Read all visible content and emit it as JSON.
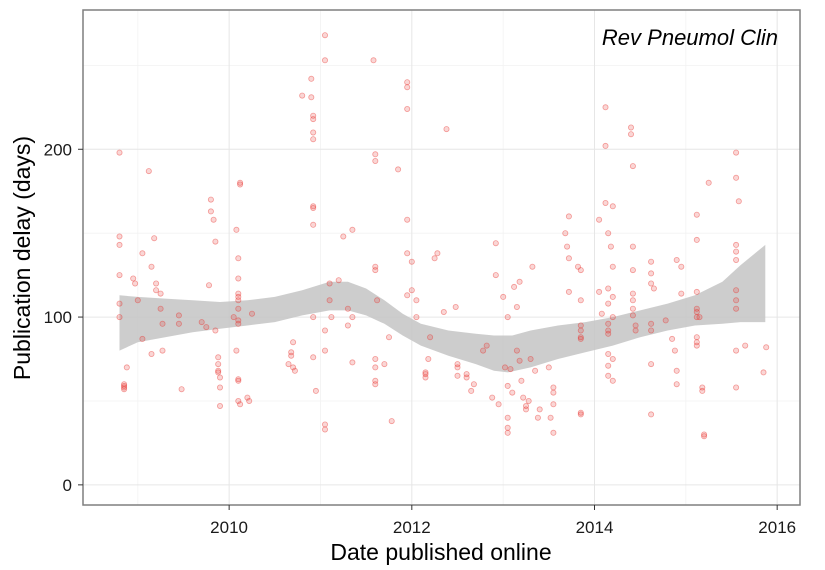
{
  "chart_data": {
    "type": "scatter",
    "annotation": "Rev Pneumol Clin",
    "xlabel": "Date published online",
    "ylabel": "Publication delay (days)",
    "xlim": [
      2008.4,
      2016.25
    ],
    "ylim": [
      -12,
      283
    ],
    "x_ticks": [
      2010,
      2012,
      2014,
      2016
    ],
    "y_ticks": [
      0,
      100,
      200
    ],
    "x_tick_labels": [
      "2010",
      "2012",
      "2014",
      "2016"
    ],
    "y_tick_labels": [
      "0",
      "100",
      "200"
    ],
    "grid": true,
    "point_color": "#e8322f",
    "band_color": "#c4c4c4",
    "points": [
      [
        2008.8,
        198
      ],
      [
        2008.8,
        148
      ],
      [
        2008.8,
        143
      ],
      [
        2008.8,
        125
      ],
      [
        2008.8,
        108
      ],
      [
        2008.8,
        100
      ],
      [
        2008.85,
        60
      ],
      [
        2008.85,
        59
      ],
      [
        2008.85,
        58
      ],
      [
        2008.85,
        57
      ],
      [
        2008.88,
        70
      ],
      [
        2008.95,
        123
      ],
      [
        2008.97,
        120
      ],
      [
        2009.0,
        110
      ],
      [
        2009.05,
        138
      ],
      [
        2009.05,
        87
      ],
      [
        2009.12,
        187
      ],
      [
        2009.15,
        130
      ],
      [
        2009.15,
        78
      ],
      [
        2009.18,
        147
      ],
      [
        2009.2,
        120
      ],
      [
        2009.2,
        116
      ],
      [
        2009.25,
        114
      ],
      [
        2009.25,
        105
      ],
      [
        2009.27,
        96
      ],
      [
        2009.27,
        80
      ],
      [
        2009.45,
        101
      ],
      [
        2009.45,
        96
      ],
      [
        2009.48,
        57
      ],
      [
        2009.7,
        97
      ],
      [
        2009.75,
        94
      ],
      [
        2009.78,
        119
      ],
      [
        2009.8,
        170
      ],
      [
        2009.8,
        163
      ],
      [
        2009.83,
        158
      ],
      [
        2009.85,
        145
      ],
      [
        2009.85,
        92
      ],
      [
        2009.88,
        76
      ],
      [
        2009.88,
        72
      ],
      [
        2009.88,
        68
      ],
      [
        2009.88,
        67
      ],
      [
        2009.9,
        64
      ],
      [
        2009.9,
        58
      ],
      [
        2009.9,
        47
      ],
      [
        2010.05,
        100
      ],
      [
        2010.08,
        80
      ],
      [
        2010.08,
        152
      ],
      [
        2010.1,
        135
      ],
      [
        2010.1,
        123
      ],
      [
        2010.1,
        114
      ],
      [
        2010.1,
        112
      ],
      [
        2010.1,
        110
      ],
      [
        2010.1,
        105
      ],
      [
        2010.1,
        98
      ],
      [
        2010.1,
        96
      ],
      [
        2010.1,
        63
      ],
      [
        2010.1,
        62
      ],
      [
        2010.1,
        50
      ],
      [
        2010.12,
        48
      ],
      [
        2010.12,
        180
      ],
      [
        2010.12,
        179
      ],
      [
        2010.2,
        52
      ],
      [
        2010.22,
        50
      ],
      [
        2010.25,
        102
      ],
      [
        2010.65,
        72
      ],
      [
        2010.68,
        79
      ],
      [
        2010.68,
        77
      ],
      [
        2010.7,
        85
      ],
      [
        2010.7,
        70
      ],
      [
        2010.72,
        68
      ],
      [
        2010.8,
        232
      ],
      [
        2010.9,
        242
      ],
      [
        2010.9,
        231
      ],
      [
        2010.92,
        220
      ],
      [
        2010.92,
        218
      ],
      [
        2010.92,
        210
      ],
      [
        2010.92,
        206
      ],
      [
        2010.92,
        166
      ],
      [
        2010.92,
        165
      ],
      [
        2010.92,
        155
      ],
      [
        2010.92,
        100
      ],
      [
        2010.92,
        76
      ],
      [
        2010.95,
        56
      ],
      [
        2011.05,
        268
      ],
      [
        2011.05,
        253
      ],
      [
        2011.05,
        92
      ],
      [
        2011.05,
        80
      ],
      [
        2011.05,
        36
      ],
      [
        2011.05,
        33
      ],
      [
        2011.1,
        120
      ],
      [
        2011.1,
        110
      ],
      [
        2011.12,
        100
      ],
      [
        2011.2,
        122
      ],
      [
        2011.25,
        148
      ],
      [
        2011.3,
        105
      ],
      [
        2011.3,
        95
      ],
      [
        2011.35,
        152
      ],
      [
        2011.35,
        100
      ],
      [
        2011.35,
        73
      ],
      [
        2011.58,
        253
      ],
      [
        2011.6,
        197
      ],
      [
        2011.6,
        193
      ],
      [
        2011.6,
        130
      ],
      [
        2011.6,
        128
      ],
      [
        2011.6,
        75
      ],
      [
        2011.6,
        70
      ],
      [
        2011.6,
        62
      ],
      [
        2011.6,
        60
      ],
      [
        2011.62,
        110
      ],
      [
        2011.7,
        72
      ],
      [
        2011.75,
        88
      ],
      [
        2011.78,
        38
      ],
      [
        2011.85,
        188
      ],
      [
        2011.95,
        240
      ],
      [
        2011.95,
        237
      ],
      [
        2011.95,
        224
      ],
      [
        2011.95,
        158
      ],
      [
        2011.95,
        138
      ],
      [
        2011.95,
        113
      ],
      [
        2012.0,
        133
      ],
      [
        2012.0,
        116
      ],
      [
        2012.05,
        110
      ],
      [
        2012.05,
        100
      ],
      [
        2012.15,
        67
      ],
      [
        2012.15,
        66
      ],
      [
        2012.15,
        64
      ],
      [
        2012.18,
        75
      ],
      [
        2012.2,
        88
      ],
      [
        2012.25,
        135
      ],
      [
        2012.28,
        138
      ],
      [
        2012.35,
        103
      ],
      [
        2012.38,
        212
      ],
      [
        2012.48,
        106
      ],
      [
        2012.5,
        72
      ],
      [
        2012.5,
        70
      ],
      [
        2012.5,
        65
      ],
      [
        2012.6,
        66
      ],
      [
        2012.6,
        64
      ],
      [
        2012.65,
        56
      ],
      [
        2012.68,
        60
      ],
      [
        2012.78,
        80
      ],
      [
        2012.82,
        83
      ],
      [
        2012.88,
        52
      ],
      [
        2012.92,
        144
      ],
      [
        2012.92,
        125
      ],
      [
        2012.95,
        48
      ],
      [
        2013.0,
        112
      ],
      [
        2013.02,
        70
      ],
      [
        2013.05,
        100
      ],
      [
        2013.05,
        40
      ],
      [
        2013.05,
        34
      ],
      [
        2013.05,
        31
      ],
      [
        2013.05,
        59
      ],
      [
        2013.08,
        69
      ],
      [
        2013.1,
        55
      ],
      [
        2013.12,
        118
      ],
      [
        2013.15,
        106
      ],
      [
        2013.15,
        80
      ],
      [
        2013.18,
        121
      ],
      [
        2013.18,
        74
      ],
      [
        2013.2,
        62
      ],
      [
        2013.22,
        52
      ],
      [
        2013.25,
        47
      ],
      [
        2013.25,
        45
      ],
      [
        2013.28,
        50
      ],
      [
        2013.3,
        75
      ],
      [
        2013.32,
        130
      ],
      [
        2013.35,
        68
      ],
      [
        2013.38,
        40
      ],
      [
        2013.4,
        45
      ],
      [
        2013.5,
        70
      ],
      [
        2013.52,
        40
      ],
      [
        2013.55,
        58
      ],
      [
        2013.55,
        55
      ],
      [
        2013.55,
        31
      ],
      [
        2013.55,
        48
      ],
      [
        2013.68,
        150
      ],
      [
        2013.7,
        142
      ],
      [
        2013.72,
        160
      ],
      [
        2013.72,
        135
      ],
      [
        2013.72,
        115
      ],
      [
        2013.82,
        130
      ],
      [
        2013.85,
        128
      ],
      [
        2013.85,
        110
      ],
      [
        2013.85,
        95
      ],
      [
        2013.85,
        92
      ],
      [
        2013.85,
        88
      ],
      [
        2013.85,
        87
      ],
      [
        2013.85,
        43
      ],
      [
        2013.85,
        42
      ],
      [
        2014.05,
        158
      ],
      [
        2014.05,
        115
      ],
      [
        2014.08,
        102
      ],
      [
        2014.12,
        225
      ],
      [
        2014.12,
        202
      ],
      [
        2014.12,
        168
      ],
      [
        2014.15,
        150
      ],
      [
        2014.15,
        117
      ],
      [
        2014.15,
        108
      ],
      [
        2014.15,
        96
      ],
      [
        2014.15,
        92
      ],
      [
        2014.15,
        90
      ],
      [
        2014.15,
        78
      ],
      [
        2014.15,
        71
      ],
      [
        2014.15,
        65
      ],
      [
        2014.18,
        142
      ],
      [
        2014.2,
        130
      ],
      [
        2014.2,
        112
      ],
      [
        2014.2,
        100
      ],
      [
        2014.2,
        75
      ],
      [
        2014.2,
        62
      ],
      [
        2014.2,
        166
      ],
      [
        2014.4,
        213
      ],
      [
        2014.4,
        209
      ],
      [
        2014.42,
        190
      ],
      [
        2014.42,
        142
      ],
      [
        2014.42,
        128
      ],
      [
        2014.42,
        114
      ],
      [
        2014.42,
        110
      ],
      [
        2014.42,
        105
      ],
      [
        2014.42,
        101
      ],
      [
        2014.45,
        95
      ],
      [
        2014.45,
        92
      ],
      [
        2014.62,
        133
      ],
      [
        2014.62,
        126
      ],
      [
        2014.62,
        120
      ],
      [
        2014.62,
        96
      ],
      [
        2014.62,
        92
      ],
      [
        2014.62,
        72
      ],
      [
        2014.62,
        42
      ],
      [
        2014.65,
        117
      ],
      [
        2014.78,
        98
      ],
      [
        2014.85,
        87
      ],
      [
        2014.88,
        80
      ],
      [
        2014.9,
        68
      ],
      [
        2014.9,
        60
      ],
      [
        2014.9,
        134
      ],
      [
        2014.95,
        130
      ],
      [
        2014.95,
        114
      ],
      [
        2015.12,
        161
      ],
      [
        2015.12,
        146
      ],
      [
        2015.12,
        115
      ],
      [
        2015.12,
        105
      ],
      [
        2015.12,
        103
      ],
      [
        2015.12,
        100
      ],
      [
        2015.12,
        88
      ],
      [
        2015.12,
        85
      ],
      [
        2015.12,
        83
      ],
      [
        2015.15,
        100
      ],
      [
        2015.18,
        58
      ],
      [
        2015.18,
        56
      ],
      [
        2015.2,
        30
      ],
      [
        2015.2,
        29
      ],
      [
        2015.25,
        180
      ],
      [
        2015.55,
        198
      ],
      [
        2015.55,
        183
      ],
      [
        2015.55,
        143
      ],
      [
        2015.55,
        139
      ],
      [
        2015.55,
        134
      ],
      [
        2015.55,
        116
      ],
      [
        2015.55,
        110
      ],
      [
        2015.55,
        105
      ],
      [
        2015.55,
        80
      ],
      [
        2015.55,
        58
      ],
      [
        2015.58,
        169
      ],
      [
        2015.65,
        83
      ],
      [
        2015.85,
        67
      ],
      [
        2015.88,
        82
      ]
    ],
    "smooth_lower": [
      [
        2008.8,
        80
      ],
      [
        2009.0,
        85
      ],
      [
        2009.3,
        88
      ],
      [
        2009.6,
        91
      ],
      [
        2009.9,
        93
      ],
      [
        2010.2,
        95
      ],
      [
        2010.5,
        97
      ],
      [
        2010.8,
        101
      ],
      [
        2011.1,
        104
      ],
      [
        2011.3,
        104
      ],
      [
        2011.5,
        101
      ],
      [
        2011.7,
        96
      ],
      [
        2011.9,
        89
      ],
      [
        2012.1,
        83
      ],
      [
        2012.4,
        77
      ],
      [
        2012.7,
        72
      ],
      [
        2012.9,
        68
      ],
      [
        2013.05,
        67
      ],
      [
        2013.3,
        70
      ],
      [
        2013.6,
        75
      ],
      [
        2013.9,
        79
      ],
      [
        2014.2,
        83
      ],
      [
        2014.5,
        88
      ],
      [
        2014.8,
        92
      ],
      [
        2015.1,
        95
      ],
      [
        2015.4,
        96
      ],
      [
        2015.6,
        97
      ],
      [
        2015.87,
        97
      ]
    ],
    "smooth_upper": [
      [
        2008.8,
        113
      ],
      [
        2009.0,
        112
      ],
      [
        2009.3,
        111
      ],
      [
        2009.6,
        110
      ],
      [
        2009.9,
        109
      ],
      [
        2010.2,
        110
      ],
      [
        2010.5,
        112
      ],
      [
        2010.8,
        116
      ],
      [
        2011.1,
        121
      ],
      [
        2011.3,
        121
      ],
      [
        2011.5,
        117
      ],
      [
        2011.7,
        110
      ],
      [
        2011.9,
        102
      ],
      [
        2012.1,
        96
      ],
      [
        2012.4,
        92
      ],
      [
        2012.7,
        90
      ],
      [
        2012.9,
        89
      ],
      [
        2013.1,
        89
      ],
      [
        2013.3,
        92
      ],
      [
        2013.6,
        95
      ],
      [
        2013.9,
        97
      ],
      [
        2014.2,
        100
      ],
      [
        2014.5,
        104
      ],
      [
        2014.8,
        108
      ],
      [
        2015.1,
        113
      ],
      [
        2015.4,
        121
      ],
      [
        2015.6,
        131
      ],
      [
        2015.87,
        143
      ]
    ]
  }
}
